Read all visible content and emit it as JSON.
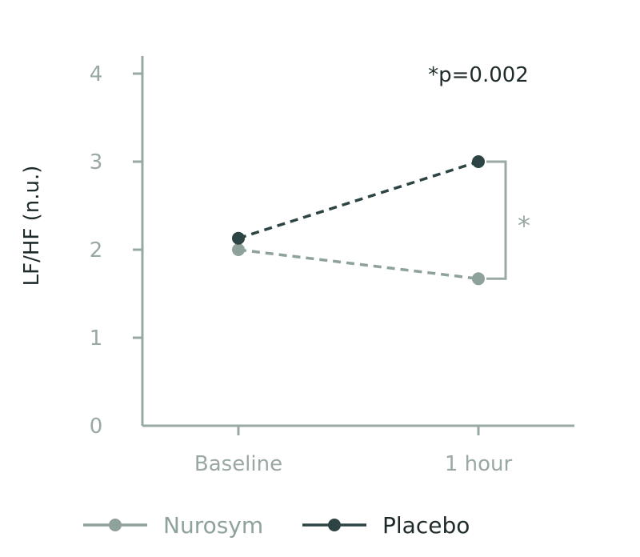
{
  "chart_data": {
    "type": "line",
    "categories": [
      "Baseline",
      "1 hour"
    ],
    "series": [
      {
        "name": "Nurosym",
        "values": [
          2.0,
          1.67
        ],
        "color": "#8fa19b",
        "dashed": true
      },
      {
        "name": "Placebo",
        "values": [
          2.13,
          3.0
        ],
        "color": "#2c4443",
        "dashed": true
      }
    ],
    "ylabel": "LF/HF (n.u.)",
    "xlabel": "",
    "ylim": [
      0,
      4
    ],
    "yticks": [
      0,
      1,
      2,
      3,
      4
    ],
    "annotation": "*p=0.002",
    "significance_marker": "*",
    "legend_position": "bottom",
    "grid": false,
    "axis_color": "#9aa8a3"
  }
}
